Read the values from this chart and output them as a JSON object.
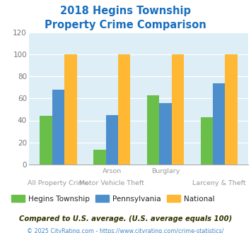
{
  "title_line1": "2018 Hegins Township",
  "title_line2": "Property Crime Comparison",
  "hegins": [
    44,
    13,
    63,
    43
  ],
  "pennsylvania": [
    68,
    45,
    56,
    74
  ],
  "national": [
    100,
    100,
    100,
    100
  ],
  "colors": {
    "hegins": "#6abf4b",
    "pennsylvania": "#4d8fcc",
    "national": "#ffb833"
  },
  "ylim": [
    0,
    120
  ],
  "yticks": [
    0,
    20,
    40,
    60,
    80,
    100,
    120
  ],
  "legend_labels": [
    "Hegins Township",
    "Pennsylvania",
    "National"
  ],
  "footnote1": "Compared to U.S. average. (U.S. average equals 100)",
  "footnote2": "© 2025 CityRating.com - https://www.cityrating.com/crime-statistics/",
  "bg_color": "#ddeef6",
  "title_color": "#1a6fbe",
  "footnote1_color": "#333300",
  "footnote2_color": "#4488cc",
  "label_color": "#999999",
  "tick_color": "#777777"
}
